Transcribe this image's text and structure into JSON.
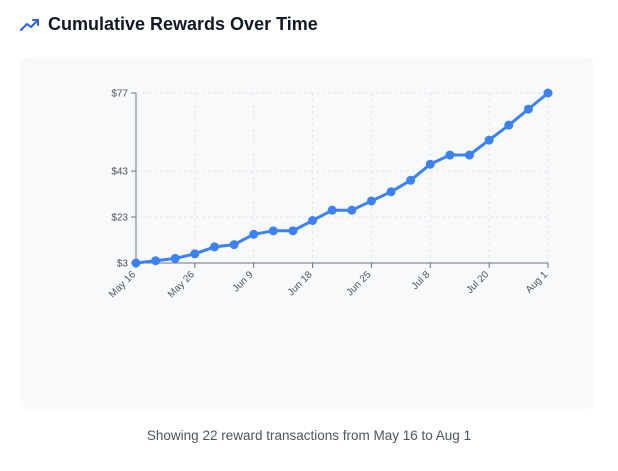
{
  "header": {
    "title": "Cumulative Rewards Over Time",
    "icon": "trending-up-icon",
    "icon_color": "#2563eb"
  },
  "footer": {
    "text": "Showing 22 reward transactions from May 16 to Aug 1"
  },
  "chart_data": {
    "type": "line",
    "title": "Cumulative Rewards Over Time",
    "xlabel": "",
    "ylabel": "",
    "x_tick_labels": [
      "May 16",
      "May 26",
      "Jun 9",
      "Jun 18",
      "Jun 25",
      "Jul 8",
      "Jul 20",
      "Aug 1"
    ],
    "y_tick_labels": [
      "$3",
      "$23",
      "$43",
      "$77"
    ],
    "y_ticks": [
      3,
      23,
      43,
      77
    ],
    "ylim": [
      3,
      77
    ],
    "grid": true,
    "line_color": "#3b82f6",
    "series": [
      {
        "values": [
          3,
          4,
          5,
          7,
          10,
          11,
          15.5,
          17,
          17,
          21.5,
          26,
          26,
          30,
          34,
          39,
          46,
          50,
          50,
          56.5,
          63,
          70,
          77
        ]
      }
    ]
  }
}
